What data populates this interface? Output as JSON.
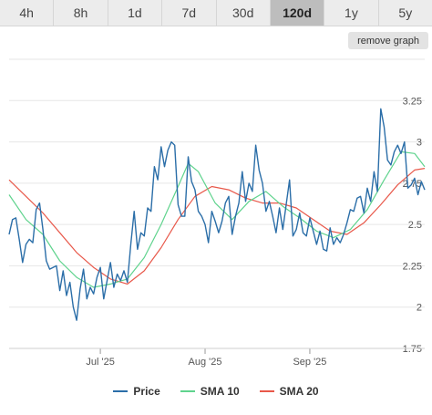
{
  "ranges": {
    "items": [
      "4h",
      "8h",
      "1d",
      "7d",
      "30d",
      "120d",
      "1y",
      "5y"
    ],
    "selected": "120d"
  },
  "remove_graph_label": "remove graph",
  "colors": {
    "price": "#2b6ea8",
    "sma10": "#5fd38d",
    "sma20": "#e8584a"
  },
  "chart_data": {
    "type": "line",
    "title": "",
    "xlabel": "",
    "ylabel": "",
    "x_range": [
      "2025-06-04",
      "2025-10-05"
    ],
    "x_ticks": [
      {
        "date": "2025-07-01",
        "label": "Jul '25"
      },
      {
        "date": "2025-08-01",
        "label": "Aug '25"
      },
      {
        "date": "2025-09-01",
        "label": "Sep '25"
      }
    ],
    "ylim": [
      1.75,
      3.25
    ],
    "y_ticks": [
      1.75,
      2,
      2.25,
      2.5,
      2.75,
      3,
      3.25
    ],
    "grid": true,
    "legend_position": "bottom",
    "series": [
      {
        "name": "Price",
        "values": [
          [
            "2025-06-04",
            2.44
          ],
          [
            "2025-06-05",
            2.53
          ],
          [
            "2025-06-06",
            2.54
          ],
          [
            "2025-06-07",
            2.41
          ],
          [
            "2025-06-08",
            2.27
          ],
          [
            "2025-06-09",
            2.38
          ],
          [
            "2025-06-10",
            2.41
          ],
          [
            "2025-06-11",
            2.39
          ],
          [
            "2025-06-12",
            2.59
          ],
          [
            "2025-06-13",
            2.63
          ],
          [
            "2025-06-14",
            2.47
          ],
          [
            "2025-06-15",
            2.28
          ],
          [
            "2025-06-16",
            2.23
          ],
          [
            "2025-06-17",
            2.24
          ],
          [
            "2025-06-18",
            2.25
          ],
          [
            "2025-06-19",
            2.1
          ],
          [
            "2025-06-20",
            2.22
          ],
          [
            "2025-06-21",
            2.07
          ],
          [
            "2025-06-22",
            2.15
          ],
          [
            "2025-06-23",
            2.0
          ],
          [
            "2025-06-24",
            1.92
          ],
          [
            "2025-06-25",
            2.11
          ],
          [
            "2025-06-26",
            2.23
          ],
          [
            "2025-06-27",
            2.05
          ],
          [
            "2025-06-28",
            2.12
          ],
          [
            "2025-06-29",
            2.08
          ],
          [
            "2025-06-30",
            2.18
          ],
          [
            "2025-07-01",
            2.24
          ],
          [
            "2025-07-02",
            2.05
          ],
          [
            "2025-07-03",
            2.16
          ],
          [
            "2025-07-04",
            2.27
          ],
          [
            "2025-07-05",
            2.12
          ],
          [
            "2025-07-06",
            2.2
          ],
          [
            "2025-07-07",
            2.16
          ],
          [
            "2025-07-08",
            2.22
          ],
          [
            "2025-07-09",
            2.15
          ],
          [
            "2025-07-10",
            2.38
          ],
          [
            "2025-07-11",
            2.58
          ],
          [
            "2025-07-12",
            2.35
          ],
          [
            "2025-07-13",
            2.45
          ],
          [
            "2025-07-14",
            2.43
          ],
          [
            "2025-07-15",
            2.6
          ],
          [
            "2025-07-16",
            2.58
          ],
          [
            "2025-07-17",
            2.85
          ],
          [
            "2025-07-18",
            2.77
          ],
          [
            "2025-07-19",
            2.97
          ],
          [
            "2025-07-20",
            2.85
          ],
          [
            "2025-07-21",
            2.95
          ],
          [
            "2025-07-22",
            3.0
          ],
          [
            "2025-07-23",
            2.98
          ],
          [
            "2025-07-24",
            2.62
          ],
          [
            "2025-07-25",
            2.55
          ],
          [
            "2025-07-26",
            2.55
          ],
          [
            "2025-07-27",
            2.91
          ],
          [
            "2025-07-28",
            2.76
          ],
          [
            "2025-07-29",
            2.71
          ],
          [
            "2025-07-30",
            2.58
          ],
          [
            "2025-07-31",
            2.55
          ],
          [
            "2025-08-01",
            2.5
          ],
          [
            "2025-08-02",
            2.39
          ],
          [
            "2025-08-03",
            2.58
          ],
          [
            "2025-08-04",
            2.52
          ],
          [
            "2025-08-05",
            2.45
          ],
          [
            "2025-08-06",
            2.52
          ],
          [
            "2025-08-07",
            2.63
          ],
          [
            "2025-08-08",
            2.67
          ],
          [
            "2025-08-09",
            2.44
          ],
          [
            "2025-08-10",
            2.55
          ],
          [
            "2025-08-11",
            2.63
          ],
          [
            "2025-08-12",
            2.82
          ],
          [
            "2025-08-13",
            2.64
          ],
          [
            "2025-08-14",
            2.75
          ],
          [
            "2025-08-15",
            2.7
          ],
          [
            "2025-08-16",
            2.98
          ],
          [
            "2025-08-17",
            2.83
          ],
          [
            "2025-08-18",
            2.75
          ],
          [
            "2025-08-19",
            2.58
          ],
          [
            "2025-08-20",
            2.64
          ],
          [
            "2025-08-21",
            2.55
          ],
          [
            "2025-08-22",
            2.45
          ],
          [
            "2025-08-23",
            2.6
          ],
          [
            "2025-08-24",
            2.47
          ],
          [
            "2025-08-25",
            2.62
          ],
          [
            "2025-08-26",
            2.77
          ],
          [
            "2025-08-27",
            2.43
          ],
          [
            "2025-08-28",
            2.47
          ],
          [
            "2025-08-29",
            2.57
          ],
          [
            "2025-08-30",
            2.45
          ],
          [
            "2025-08-31",
            2.43
          ],
          [
            "2025-09-01",
            2.54
          ],
          [
            "2025-09-02",
            2.46
          ],
          [
            "2025-09-03",
            2.38
          ],
          [
            "2025-09-04",
            2.46
          ],
          [
            "2025-09-05",
            2.35
          ],
          [
            "2025-09-06",
            2.34
          ],
          [
            "2025-09-07",
            2.48
          ],
          [
            "2025-09-08",
            2.38
          ],
          [
            "2025-09-09",
            2.42
          ],
          [
            "2025-09-10",
            2.39
          ],
          [
            "2025-09-11",
            2.44
          ],
          [
            "2025-09-12",
            2.51
          ],
          [
            "2025-09-13",
            2.59
          ],
          [
            "2025-09-14",
            2.58
          ],
          [
            "2025-09-15",
            2.66
          ],
          [
            "2025-09-16",
            2.67
          ],
          [
            "2025-09-17",
            2.57
          ],
          [
            "2025-09-18",
            2.72
          ],
          [
            "2025-09-19",
            2.64
          ],
          [
            "2025-09-20",
            2.82
          ],
          [
            "2025-09-21",
            2.7
          ],
          [
            "2025-09-22",
            3.2
          ],
          [
            "2025-09-23",
            3.09
          ],
          [
            "2025-09-24",
            2.89
          ],
          [
            "2025-09-25",
            2.86
          ],
          [
            "2025-09-26",
            2.94
          ],
          [
            "2025-09-27",
            2.98
          ],
          [
            "2025-09-28",
            2.93
          ],
          [
            "2025-09-29",
            3.0
          ],
          [
            "2025-09-30",
            2.72
          ],
          [
            "2025-10-01",
            2.74
          ],
          [
            "2025-10-02",
            2.78
          ],
          [
            "2025-10-03",
            2.68
          ],
          [
            "2025-10-04",
            2.76
          ],
          [
            "2025-10-05",
            2.71
          ]
        ]
      },
      {
        "name": "SMA 10",
        "values": [
          [
            "2025-06-04",
            2.68
          ],
          [
            "2025-06-09",
            2.53
          ],
          [
            "2025-06-14",
            2.44
          ],
          [
            "2025-06-19",
            2.28
          ],
          [
            "2025-06-24",
            2.18
          ],
          [
            "2025-06-29",
            2.12
          ],
          [
            "2025-07-04",
            2.14
          ],
          [
            "2025-07-09",
            2.17
          ],
          [
            "2025-07-14",
            2.3
          ],
          [
            "2025-07-19",
            2.5
          ],
          [
            "2025-07-24",
            2.73
          ],
          [
            "2025-07-27",
            2.87
          ],
          [
            "2025-07-30",
            2.82
          ],
          [
            "2025-08-04",
            2.63
          ],
          [
            "2025-08-09",
            2.53
          ],
          [
            "2025-08-14",
            2.64
          ],
          [
            "2025-08-19",
            2.7
          ],
          [
            "2025-08-24",
            2.61
          ],
          [
            "2025-08-29",
            2.54
          ],
          [
            "2025-09-03",
            2.46
          ],
          [
            "2025-09-08",
            2.42
          ],
          [
            "2025-09-13",
            2.47
          ],
          [
            "2025-09-18",
            2.59
          ],
          [
            "2025-09-23",
            2.77
          ],
          [
            "2025-09-28",
            2.94
          ],
          [
            "2025-10-02",
            2.93
          ],
          [
            "2025-10-05",
            2.85
          ]
        ]
      },
      {
        "name": "SMA 20",
        "values": [
          [
            "2025-06-04",
            2.77
          ],
          [
            "2025-06-09",
            2.67
          ],
          [
            "2025-06-14",
            2.57
          ],
          [
            "2025-06-19",
            2.45
          ],
          [
            "2025-06-24",
            2.33
          ],
          [
            "2025-06-29",
            2.24
          ],
          [
            "2025-07-04",
            2.17
          ],
          [
            "2025-07-09",
            2.14
          ],
          [
            "2025-07-14",
            2.22
          ],
          [
            "2025-07-19",
            2.36
          ],
          [
            "2025-07-24",
            2.53
          ],
          [
            "2025-07-29",
            2.67
          ],
          [
            "2025-08-03",
            2.73
          ],
          [
            "2025-08-08",
            2.71
          ],
          [
            "2025-08-13",
            2.66
          ],
          [
            "2025-08-18",
            2.63
          ],
          [
            "2025-08-23",
            2.63
          ],
          [
            "2025-08-28",
            2.6
          ],
          [
            "2025-09-02",
            2.53
          ],
          [
            "2025-09-07",
            2.46
          ],
          [
            "2025-09-12",
            2.44
          ],
          [
            "2025-09-17",
            2.51
          ],
          [
            "2025-09-22",
            2.62
          ],
          [
            "2025-09-27",
            2.74
          ],
          [
            "2025-10-02",
            2.83
          ],
          [
            "2025-10-05",
            2.84
          ]
        ]
      }
    ]
  }
}
